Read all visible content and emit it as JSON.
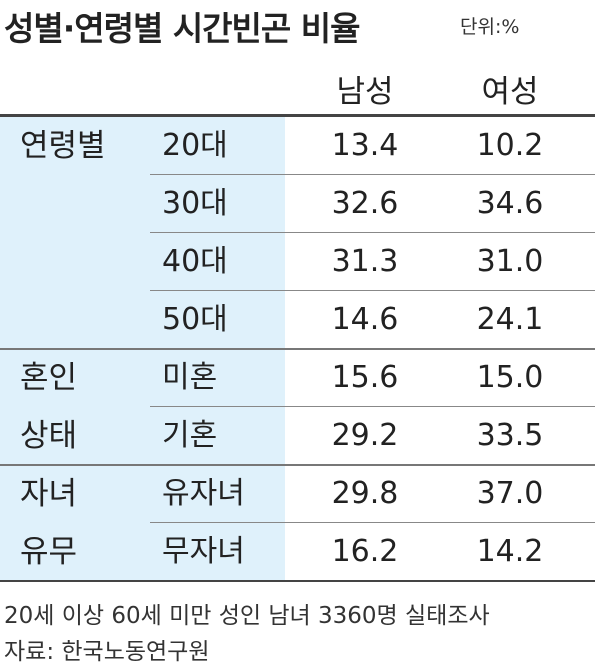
{
  "header": {
    "title": "성별·연령별 시간빈곤 비율",
    "unit": "단위:%"
  },
  "table": {
    "columns": [
      "남성",
      "여성"
    ],
    "groups": [
      {
        "label_lines": [
          "연령별"
        ],
        "rows": [
          {
            "label": "20대",
            "values": [
              "13.4",
              "10.2"
            ]
          },
          {
            "label": "30대",
            "values": [
              "32.6",
              "34.6"
            ]
          },
          {
            "label": "40대",
            "values": [
              "31.3",
              "31.0"
            ]
          },
          {
            "label": "50대",
            "values": [
              "14.6",
              "24.1"
            ]
          }
        ]
      },
      {
        "label_lines": [
          "혼인",
          "상태"
        ],
        "rows": [
          {
            "label": "미혼",
            "values": [
              "15.6",
              "15.0"
            ]
          },
          {
            "label": "기혼",
            "values": [
              "29.2",
              "33.5"
            ]
          }
        ]
      },
      {
        "label_lines": [
          "자녀",
          "유무"
        ],
        "rows": [
          {
            "label": "유자녀",
            "values": [
              "29.8",
              "37.0"
            ]
          },
          {
            "label": "무자녀",
            "values": [
              "16.2",
              "14.2"
            ]
          }
        ]
      }
    ]
  },
  "footer": {
    "notes": [
      "20세 이상 60세 미만 성인 남녀 3360명 실태조사",
      "자료: 한국노동연구원"
    ]
  }
}
